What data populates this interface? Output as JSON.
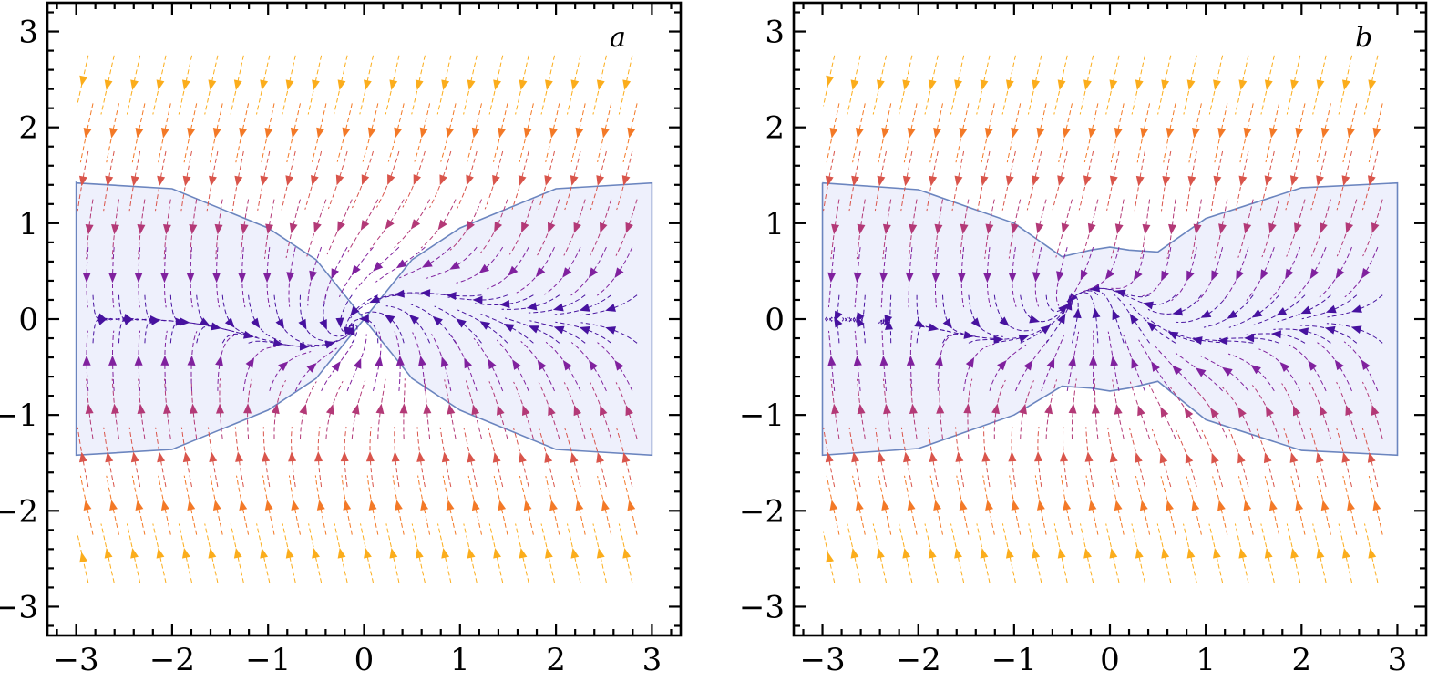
{
  "chart_data": [
    {
      "type": "streamplot",
      "panel_label": "a",
      "title": "",
      "xlabel": "",
      "ylabel": "",
      "xlim": [
        -3.3,
        3.3
      ],
      "ylim": [
        -3.3,
        3.3
      ],
      "x_ticks": [
        -3,
        -2,
        -1,
        0,
        1,
        2,
        3
      ],
      "y_ticks": [
        -3,
        -2,
        -1,
        0,
        1,
        2,
        3
      ],
      "x_tick_labels": [
        "−3",
        "−2",
        "−1",
        "0",
        "1",
        "2",
        "3"
      ],
      "y_tick_labels": [
        "−3",
        "−2",
        "−1",
        "0",
        "1",
        "2",
        "3"
      ],
      "grid": false,
      "colormap": [
        "#2a0a9e",
        "#7b1fa2",
        "#c2406b",
        "#f06a2a",
        "#fcb21b"
      ],
      "shaded_region": {
        "x_range": [
          -3,
          3
        ],
        "upper_boundary": [
          [
            -3,
            1.42
          ],
          [
            -2,
            1.36
          ],
          [
            -1,
            0.95
          ],
          [
            -0.5,
            0.62
          ],
          [
            0,
            0.0
          ],
          [
            0.5,
            -0.62
          ],
          [
            1,
            -0.95
          ],
          [
            2,
            -1.36
          ],
          [
            3,
            -1.42
          ]
        ],
        "lower_boundary": [
          [
            -3,
            -1.42
          ],
          [
            -2,
            -1.36
          ],
          [
            -1,
            -0.95
          ],
          [
            -0.5,
            -0.62
          ],
          [
            0,
            0.0
          ],
          [
            0.5,
            0.62
          ],
          [
            1,
            0.95
          ],
          [
            2,
            1.36
          ],
          [
            3,
            1.42
          ]
        ],
        "fill_color": "#e8ebfb",
        "edge_color": "#6b85bf"
      },
      "fixed_points": [
        [
          0,
          0
        ]
      ],
      "flow_note": "Outside |y| > 1.4 flow is nearly uniform (downward above, upward below); inside the shaded band streamlines converge toward and swirl around the origin."
    },
    {
      "type": "streamplot",
      "panel_label": "b",
      "title": "",
      "xlabel": "",
      "ylabel": "",
      "xlim": [
        -3.3,
        3.3
      ],
      "ylim": [
        -3.3,
        3.3
      ],
      "x_ticks": [
        -3,
        -2,
        -1,
        0,
        1,
        2,
        3
      ],
      "y_ticks": [
        -3,
        -2,
        -1,
        0,
        1,
        2,
        3
      ],
      "x_tick_labels": [
        "−3",
        "−2",
        "−1",
        "0",
        "1",
        "2",
        "3"
      ],
      "y_tick_labels": [
        "−3",
        "−2",
        "−1",
        "0",
        "1",
        "2",
        "3"
      ],
      "grid": false,
      "colormap": [
        "#2a0a9e",
        "#7b1fa2",
        "#c2406b",
        "#f06a2a",
        "#fcb21b"
      ],
      "shaded_region": {
        "x_range": [
          -3,
          3
        ],
        "upper_boundary": [
          [
            -3,
            1.42
          ],
          [
            -2,
            1.35
          ],
          [
            -1,
            1.0
          ],
          [
            -0.5,
            0.65
          ],
          [
            -0.2,
            0.72
          ],
          [
            0,
            0.75
          ],
          [
            0.2,
            0.72
          ],
          [
            0.5,
            0.7
          ],
          [
            1,
            1.05
          ],
          [
            2,
            1.37
          ],
          [
            3,
            1.42
          ]
        ],
        "lower_boundary": [
          [
            -3,
            -1.42
          ],
          [
            -2,
            -1.35
          ],
          [
            -1,
            -1.0
          ],
          [
            -0.5,
            -0.7
          ],
          [
            -0.2,
            -0.72
          ],
          [
            0,
            -0.75
          ],
          [
            0.2,
            -0.72
          ],
          [
            0.5,
            -0.65
          ],
          [
            1,
            -1.05
          ],
          [
            2,
            -1.37
          ],
          [
            3,
            -1.42
          ]
        ],
        "fill_color": "#e8ebfb",
        "edge_color": "#6b85bf"
      },
      "fixed_points": [
        [
          -0.35,
          0
        ],
        [
          0.35,
          0
        ]
      ],
      "flow_note": "Same uniform outer flow; inside the shaded band the flow splits into two swirling centres near x = ±0.35."
    }
  ]
}
